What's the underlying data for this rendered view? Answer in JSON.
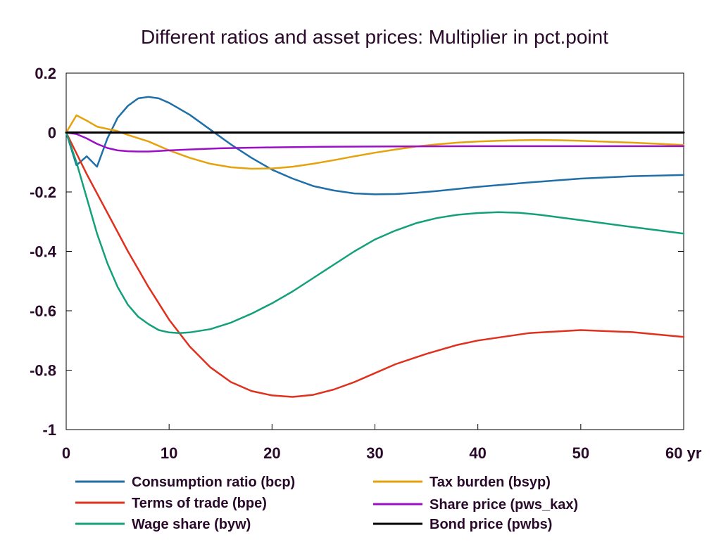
{
  "chart_data": {
    "type": "line",
    "title": "Different ratios and asset prices: Multiplier in pct.point",
    "xlabel": "",
    "ylabel": "",
    "x_unit_label": "yr",
    "xlim": [
      0,
      60
    ],
    "ylim": [
      -1,
      0.2
    ],
    "xticks": [
      0,
      10,
      20,
      30,
      40,
      50,
      60
    ],
    "yticks": [
      0.2,
      0,
      -0.2,
      -0.4,
      -0.6,
      -0.8,
      -1
    ],
    "ytick_labels": [
      "0.2",
      "0",
      "-0.2",
      "-0.4",
      "-0.6",
      "-0.8",
      "-1"
    ],
    "xtick_labels": [
      "0",
      "10",
      "20",
      "30",
      "40",
      "50",
      "60 yr"
    ],
    "grid": false,
    "legend_position": "bottom",
    "series": [
      {
        "name": "Consumption ratio (bcp)",
        "color": "#1f6fa8",
        "x": [
          0,
          1,
          2,
          3,
          4,
          5,
          6,
          7,
          8,
          9,
          10,
          12,
          14,
          16,
          18,
          20,
          22,
          24,
          26,
          28,
          30,
          32,
          34,
          36,
          38,
          40,
          45,
          50,
          55,
          60
        ],
        "y": [
          0,
          -0.11,
          -0.08,
          -0.115,
          -0.02,
          0.05,
          0.09,
          0.115,
          0.12,
          0.115,
          0.1,
          0.06,
          0.01,
          -0.04,
          -0.085,
          -0.125,
          -0.155,
          -0.18,
          -0.195,
          -0.205,
          -0.208,
          -0.207,
          -0.203,
          -0.197,
          -0.19,
          -0.183,
          -0.168,
          -0.155,
          -0.147,
          -0.143
        ]
      },
      {
        "name": "Terms of trade (bpe)",
        "color": "#e0301e",
        "x": [
          0,
          2,
          4,
          6,
          8,
          10,
          12,
          14,
          16,
          18,
          20,
          22,
          24,
          26,
          28,
          30,
          32,
          35,
          38,
          40,
          45,
          50,
          55,
          60
        ],
        "y": [
          0,
          -0.14,
          -0.27,
          -0.4,
          -0.52,
          -0.63,
          -0.72,
          -0.79,
          -0.84,
          -0.87,
          -0.885,
          -0.89,
          -0.883,
          -0.865,
          -0.84,
          -0.81,
          -0.78,
          -0.745,
          -0.715,
          -0.7,
          -0.675,
          -0.665,
          -0.672,
          -0.688
        ]
      },
      {
        "name": "Wage share (byw)",
        "color": "#14a07a",
        "x": [
          0,
          1,
          2,
          3,
          4,
          5,
          6,
          7,
          8,
          9,
          10,
          11,
          12,
          14,
          16,
          18,
          20,
          22,
          24,
          26,
          28,
          30,
          32,
          34,
          36,
          38,
          40,
          42,
          44,
          46,
          50,
          55,
          60
        ],
        "y": [
          0,
          -0.1,
          -0.22,
          -0.34,
          -0.44,
          -0.52,
          -0.58,
          -0.62,
          -0.645,
          -0.665,
          -0.673,
          -0.675,
          -0.673,
          -0.662,
          -0.64,
          -0.61,
          -0.575,
          -0.535,
          -0.49,
          -0.445,
          -0.4,
          -0.36,
          -0.33,
          -0.305,
          -0.288,
          -0.277,
          -0.271,
          -0.268,
          -0.27,
          -0.277,
          -0.295,
          -0.318,
          -0.34
        ]
      },
      {
        "name": "Tax burden (bsyp)",
        "color": "#e6a20c",
        "x": [
          0,
          1,
          2,
          3,
          4,
          5,
          6,
          8,
          10,
          12,
          14,
          16,
          18,
          20,
          22,
          24,
          26,
          28,
          30,
          32,
          34,
          36,
          38,
          40,
          42,
          44,
          46,
          48,
          50,
          55,
          60
        ],
        "y": [
          0,
          0.058,
          0.04,
          0.02,
          0.012,
          0.005,
          -0.008,
          -0.03,
          -0.06,
          -0.085,
          -0.105,
          -0.117,
          -0.122,
          -0.121,
          -0.115,
          -0.105,
          -0.093,
          -0.08,
          -0.068,
          -0.057,
          -0.047,
          -0.04,
          -0.034,
          -0.03,
          -0.028,
          -0.026,
          -0.025,
          -0.026,
          -0.028,
          -0.034,
          -0.042
        ]
      },
      {
        "name": "Share price (pws_kax)",
        "color": "#9b0fc8",
        "x": [
          0,
          1,
          2,
          3,
          4,
          5,
          6,
          7,
          8,
          9,
          10,
          12,
          15,
          20,
          25,
          30,
          40,
          50,
          60
        ],
        "y": [
          0,
          -0.005,
          -0.02,
          -0.038,
          -0.052,
          -0.06,
          -0.063,
          -0.064,
          -0.064,
          -0.062,
          -0.06,
          -0.057,
          -0.053,
          -0.05,
          -0.048,
          -0.047,
          -0.046,
          -0.046,
          -0.046
        ]
      },
      {
        "name": "Bond price (pwbs)",
        "color": "#000000",
        "x": [
          0,
          60
        ],
        "y": [
          0,
          0
        ]
      }
    ]
  }
}
